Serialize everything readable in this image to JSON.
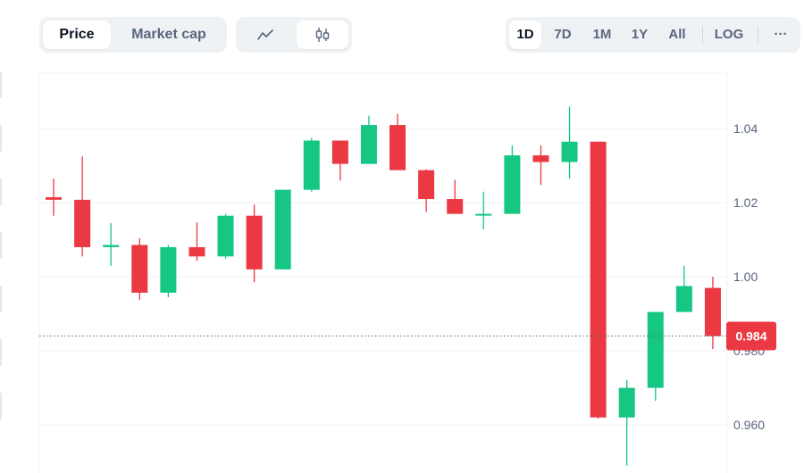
{
  "toolbar": {
    "metric_tabs": [
      {
        "label": "Price",
        "active": true
      },
      {
        "label": "Market cap",
        "active": false
      }
    ],
    "view_tabs": [
      {
        "icon": "line-chart-icon",
        "active": false
      },
      {
        "icon": "candlestick-icon",
        "active": true
      }
    ],
    "range_tabs": [
      {
        "label": "1D",
        "active": true
      },
      {
        "label": "7D",
        "active": false
      },
      {
        "label": "1M",
        "active": false
      },
      {
        "label": "1Y",
        "active": false
      },
      {
        "label": "All",
        "active": false
      },
      {
        "label": "LOG",
        "active": false
      }
    ],
    "more_label": "···"
  },
  "colors": {
    "up": "#16c784",
    "down": "#ea3943",
    "grid": "#eff2f5",
    "axis_text": "#58667e",
    "current_price_line": "#58667e"
  },
  "current_price": {
    "label": "0.984",
    "value": 0.984,
    "direction": "down"
  },
  "chart_data": {
    "type": "candlestick",
    "title": "",
    "xlabel": "",
    "ylabel": "",
    "ylim": [
      0.947,
      1.055
    ],
    "y_ticks": [
      {
        "value": 1.04,
        "label": "1.04"
      },
      {
        "value": 1.02,
        "label": "1.02"
      },
      {
        "value": 1.0,
        "label": "1.00"
      },
      {
        "value": 0.98,
        "label": "0.980"
      },
      {
        "value": 0.96,
        "label": "0.960"
      }
    ],
    "grid": true,
    "candles": [
      {
        "open": 1.0215,
        "high": 1.0265,
        "low": 1.0165,
        "close": 1.0208
      },
      {
        "open": 1.0208,
        "high": 1.0325,
        "low": 1.0055,
        "close": 1.008
      },
      {
        "open": 1.008,
        "high": 1.0145,
        "low": 1.003,
        "close": 1.0086
      },
      {
        "open": 1.0086,
        "high": 1.0104,
        "low": 0.9938,
        "close": 0.9957
      },
      {
        "open": 0.9957,
        "high": 1.0086,
        "low": 0.9945,
        "close": 1.008
      },
      {
        "open": 1.008,
        "high": 1.0147,
        "low": 1.0043,
        "close": 1.0055
      },
      {
        "open": 1.0055,
        "high": 1.017,
        "low": 1.0049,
        "close": 1.0165
      },
      {
        "open": 1.0165,
        "high": 1.0195,
        "low": 0.9985,
        "close": 1.002
      },
      {
        "open": 1.002,
        "high": 1.0235,
        "low": 1.002,
        "close": 1.0235
      },
      {
        "open": 1.0235,
        "high": 1.0375,
        "low": 1.023,
        "close": 1.0368
      },
      {
        "open": 1.0368,
        "high": 1.0368,
        "low": 1.026,
        "close": 1.0305
      },
      {
        "open": 1.0305,
        "high": 1.0435,
        "low": 1.0305,
        "close": 1.041
      },
      {
        "open": 1.041,
        "high": 1.044,
        "low": 1.0288,
        "close": 1.0288
      },
      {
        "open": 1.0288,
        "high": 1.029,
        "low": 1.0175,
        "close": 1.021
      },
      {
        "open": 1.021,
        "high": 1.0262,
        "low": 1.017,
        "close": 1.017
      },
      {
        "open": 1.017,
        "high": 1.023,
        "low": 1.0128,
        "close": 1.017
      },
      {
        "open": 1.017,
        "high": 1.0355,
        "low": 1.017,
        "close": 1.0328
      },
      {
        "open": 1.0328,
        "high": 1.0355,
        "low": 1.0248,
        "close": 1.031
      },
      {
        "open": 1.031,
        "high": 1.046,
        "low": 1.0265,
        "close": 1.0365
      },
      {
        "open": 1.0365,
        "high": 1.0365,
        "low": 0.9617,
        "close": 0.962
      },
      {
        "open": 0.962,
        "high": 0.9722,
        "low": 0.949,
        "close": 0.97
      },
      {
        "open": 0.97,
        "high": 0.9905,
        "low": 0.9665,
        "close": 0.9905
      },
      {
        "open": 0.9905,
        "high": 1.003,
        "low": 0.9905,
        "close": 0.9975
      },
      {
        "open": 0.997,
        "high": 1.0,
        "low": 0.9805,
        "close": 0.984
      }
    ]
  }
}
